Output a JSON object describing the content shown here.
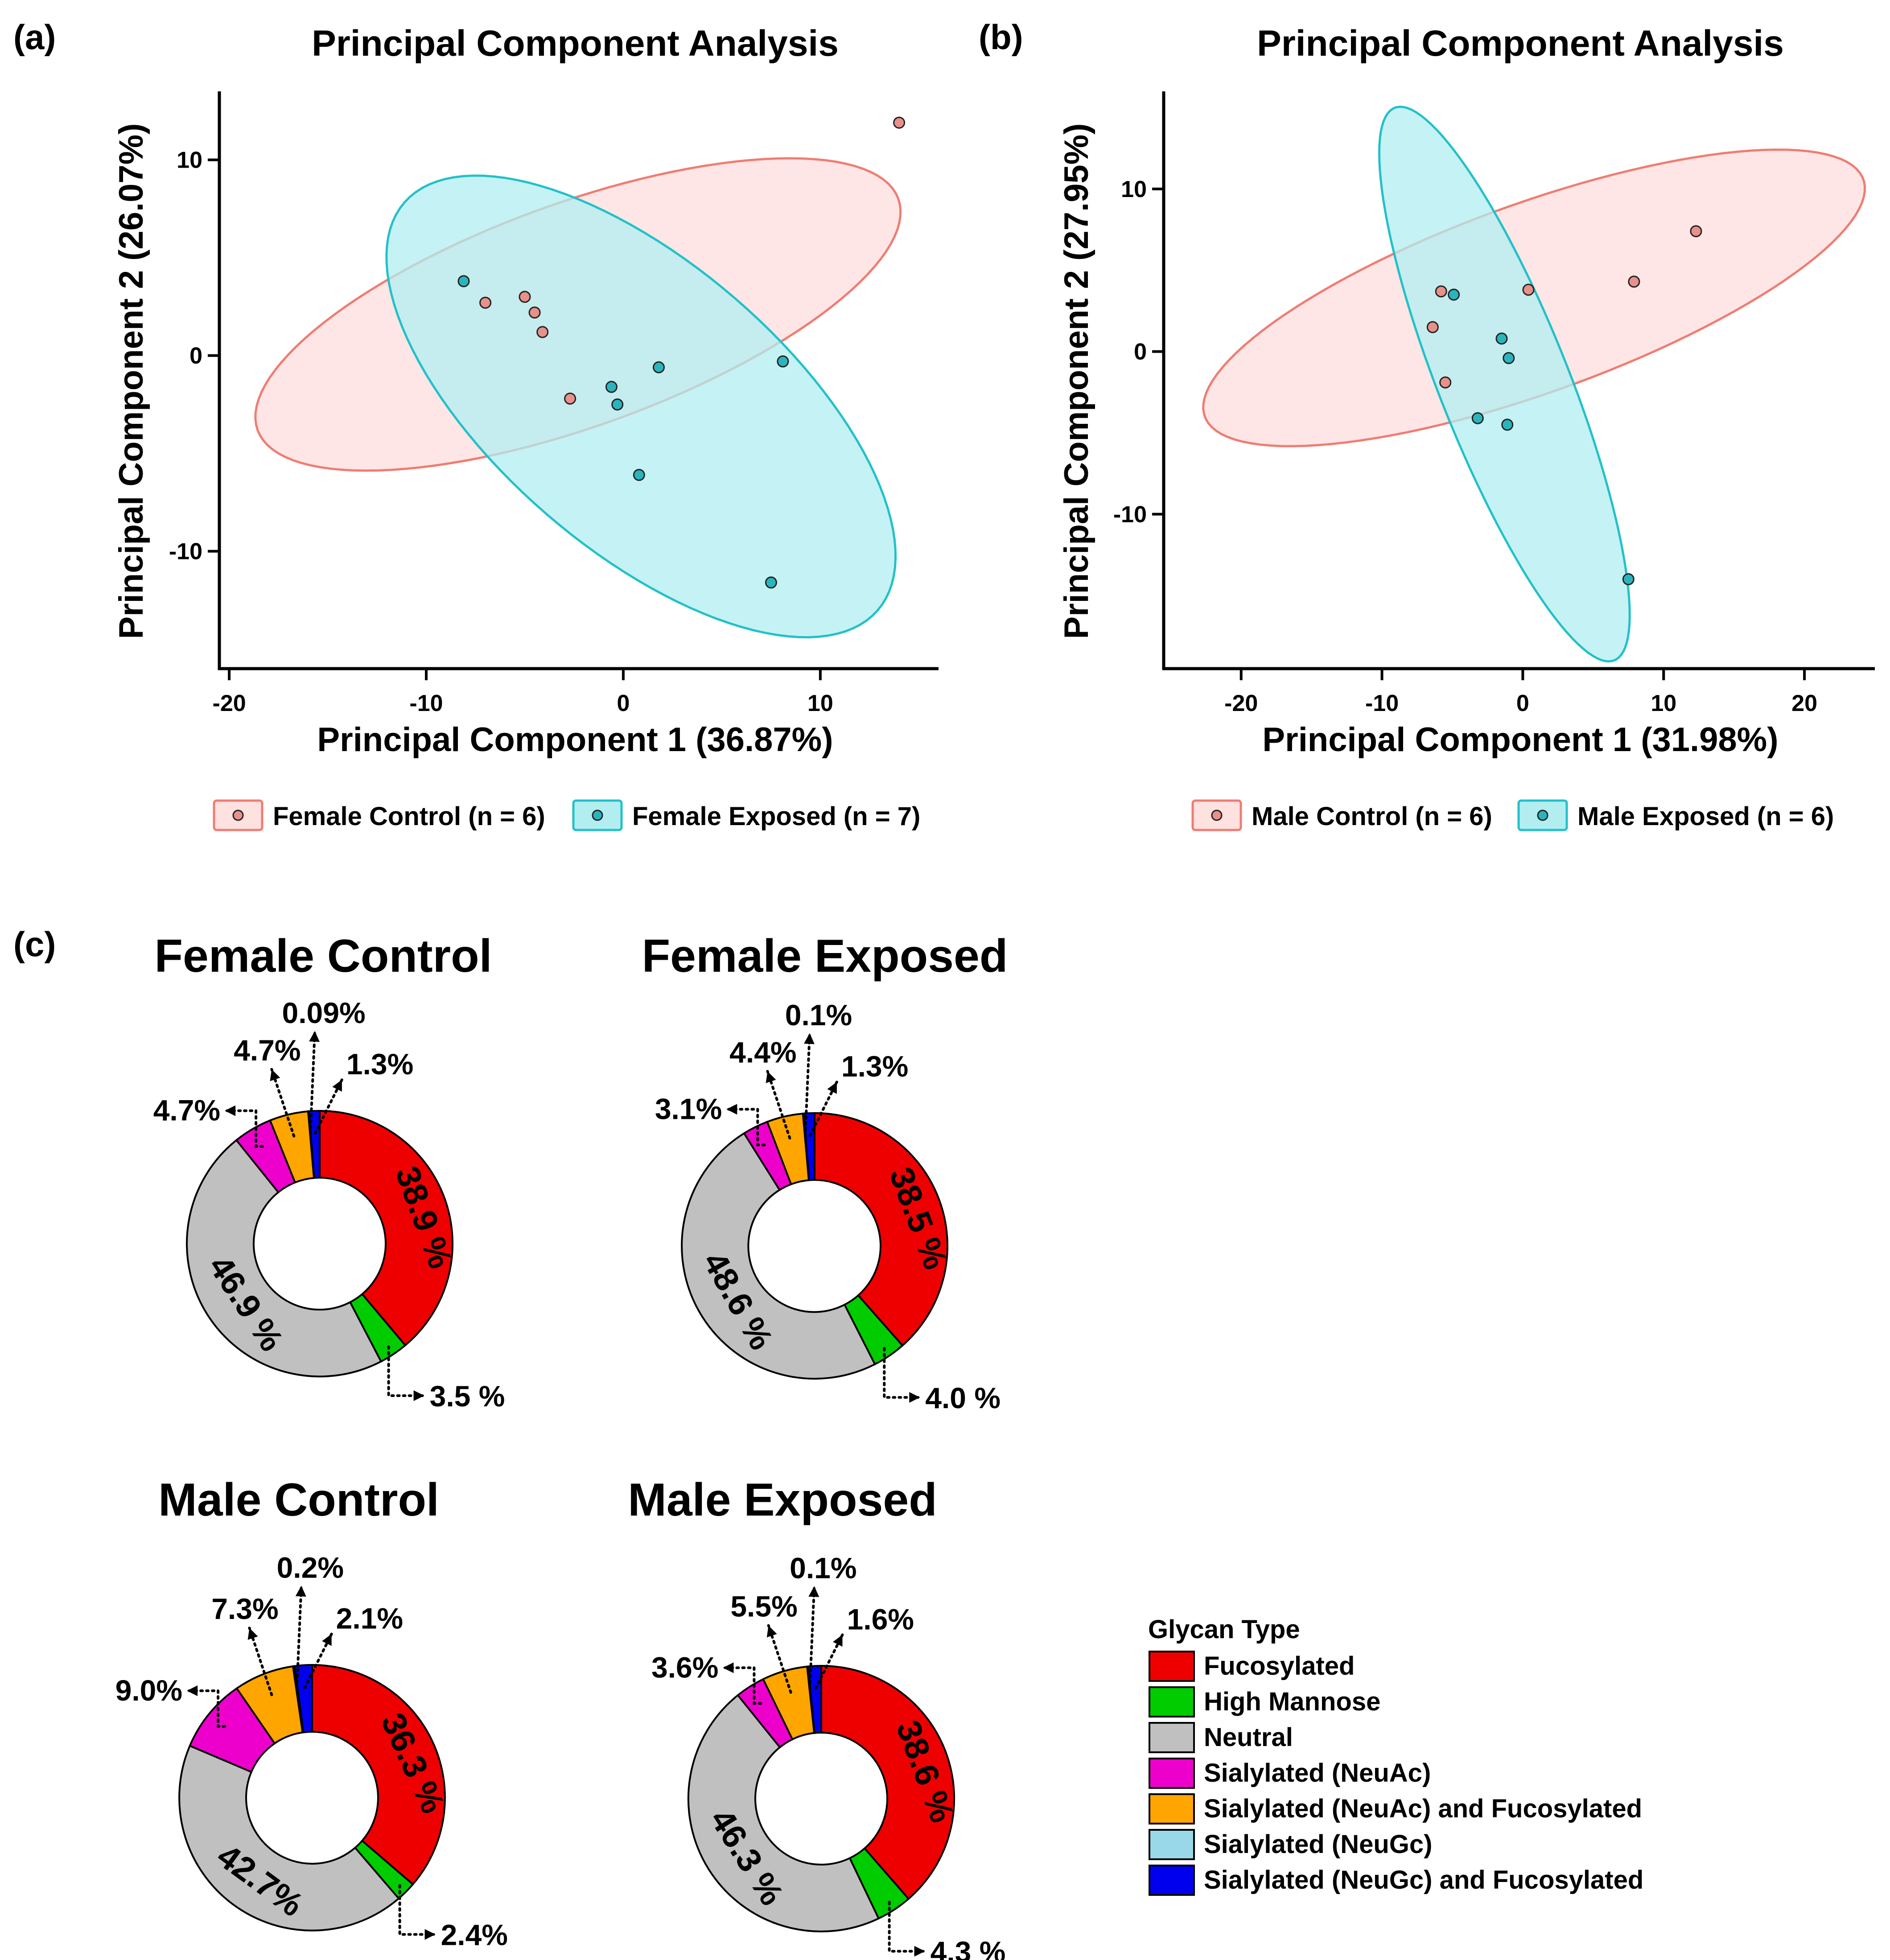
{
  "panels": {
    "a": "(a)",
    "b": "(b)",
    "c": "(c)"
  },
  "colors": {
    "control_fill": "#fde2e0",
    "control_stroke": "#f07c72",
    "control_point": "#e8908a",
    "exposed_fill": "#b2eef0",
    "exposed_stroke": "#22c1c9",
    "exposed_point": "#2ab5bd",
    "axis": "#000000"
  },
  "chart_data": [
    {
      "id": "pca_female",
      "type": "scatter",
      "title": "Principal Component Analysis",
      "xlabel": "Principal Component 1 (36.87%)",
      "ylabel": "Principal Component 2 (26.07%)",
      "xlim": [
        -20.5,
        16
      ],
      "ylim": [
        -16,
        13.5
      ],
      "xticks": [
        -20,
        -10,
        0,
        10
      ],
      "xtick_labels": [
        "-20",
        "-10",
        "0",
        "10"
      ],
      "yticks": [
        10,
        0,
        -10
      ],
      "ytick_labels": [
        "10",
        "0",
        "-10"
      ],
      "grid": false,
      "legend_position": "bottom",
      "series": [
        {
          "name": "Female Control (n = 6)",
          "group": "control",
          "points": [
            [
              -7,
              2.7
            ],
            [
              -5,
              3
            ],
            [
              -4.5,
              2.2
            ],
            [
              -4.1,
              1.2
            ],
            [
              -2.7,
              -2.2
            ],
            [
              14,
              11.9
            ]
          ],
          "ellipse": {
            "cx": -2.3,
            "cy": 2.1,
            "rx": 17.3,
            "ry": 5.7,
            "angle": 20
          }
        },
        {
          "name": "Female Exposed (n = 7)",
          "group": "exposed",
          "points": [
            [
              -8.1,
              3.8
            ],
            [
              -0.6,
              -1.6
            ],
            [
              -0.3,
              -2.5
            ],
            [
              1.8,
              -0.6
            ],
            [
              0.8,
              -6.1
            ],
            [
              8.1,
              -0.3
            ],
            [
              7.5,
              -11.6
            ]
          ],
          "ellipse": {
            "cx": 0.9,
            "cy": -2.6,
            "rx": 15.9,
            "ry": 7.3,
            "angle": -41
          }
        }
      ]
    },
    {
      "id": "pca_male",
      "type": "scatter",
      "title": "Principal Component Analysis",
      "xlabel": "Principal Component 1 (31.98%)",
      "ylabel": "Principal Component 2 (27.95%)",
      "xlim": [
        -25.5,
        25
      ],
      "ylim": [
        -19.5,
        16
      ],
      "xticks": [
        -20,
        -10,
        0,
        10,
        20
      ],
      "xtick_labels": [
        "-20",
        "-10",
        "0",
        "10",
        "20"
      ],
      "yticks": [
        10,
        0,
        -10
      ],
      "ytick_labels": [
        "10",
        "0",
        "-10"
      ],
      "grid": false,
      "legend_position": "bottom",
      "series": [
        {
          "name": "Male Control (n = 6)",
          "group": "control",
          "points": [
            [
              -5.8,
              3.7
            ],
            [
              -6.4,
              1.5
            ],
            [
              -5.5,
              -1.9
            ],
            [
              0.4,
              3.8
            ],
            [
              7.9,
              4.3
            ],
            [
              12.3,
              7.4
            ]
          ],
          "ellipse": {
            "cx": 0.8,
            "cy": 3.3,
            "rx": 24.5,
            "ry": 5.9,
            "angle": 17
          }
        },
        {
          "name": "Male Exposed (n = 6)",
          "group": "exposed",
          "points": [
            [
              -4.9,
              3.5
            ],
            [
              -1.5,
              0.8
            ],
            [
              -1,
              -0.4
            ],
            [
              -3.2,
              -4.1
            ],
            [
              -1.1,
              -4.5
            ],
            [
              7.5,
              -14
            ]
          ],
          "ellipse": {
            "cx": -1.3,
            "cy": -2,
            "rx": 18.7,
            "ry": 4.5,
            "angle": -65
          }
        }
      ]
    },
    {
      "id": "glycan_donuts",
      "type": "pie",
      "legend_title": "Glycan Type",
      "categories": [
        "Fucosylated",
        "High Mannose",
        "Neutral",
        "Sialylated (NeuAc)",
        "Sialylated (NeuAc) and Fucosylated",
        "Sialylated (NeuGc)",
        "Sialylated (NeuGc) and Fucosylated"
      ],
      "category_colors": [
        "#ee0000",
        "#00cc00",
        "#c0c0c0",
        "#ee00cc",
        "#ffa500",
        "#99d8e8",
        "#0000ee"
      ],
      "groups": [
        {
          "title": "Female Control",
          "values": [
            38.9,
            3.5,
            46.9,
            4.7,
            4.7,
            0.09,
            1.3
          ],
          "labels": [
            "38.9 %",
            "3.5 %",
            "46.9 %",
            "4.7%",
            "4.7%",
            "0.09%",
            "1.3%"
          ]
        },
        {
          "title": "Female Exposed",
          "values": [
            38.5,
            4.0,
            48.6,
            3.1,
            4.4,
            0.1,
            1.3
          ],
          "labels": [
            "38.5 %",
            "4.0 %",
            "48.6 %",
            "3.1%",
            "4.4%",
            "0.1%",
            "1.3%"
          ]
        },
        {
          "title": "Male Control",
          "values": [
            36.3,
            2.4,
            42.7,
            9.0,
            7.3,
            0.2,
            2.1
          ],
          "labels": [
            "36.3 %",
            "2.4%",
            "42.7%",
            "9.0%",
            "7.3%",
            "0.2%",
            "2.1%"
          ]
        },
        {
          "title": "Male Exposed",
          "values": [
            38.6,
            4.3,
            46.3,
            3.6,
            5.5,
            0.1,
            1.6
          ],
          "labels": [
            "38.6 %",
            "4.3 %",
            "46.3 %",
            "3.6%",
            "5.5%",
            "0.1%",
            "1.6%"
          ]
        }
      ]
    }
  ]
}
